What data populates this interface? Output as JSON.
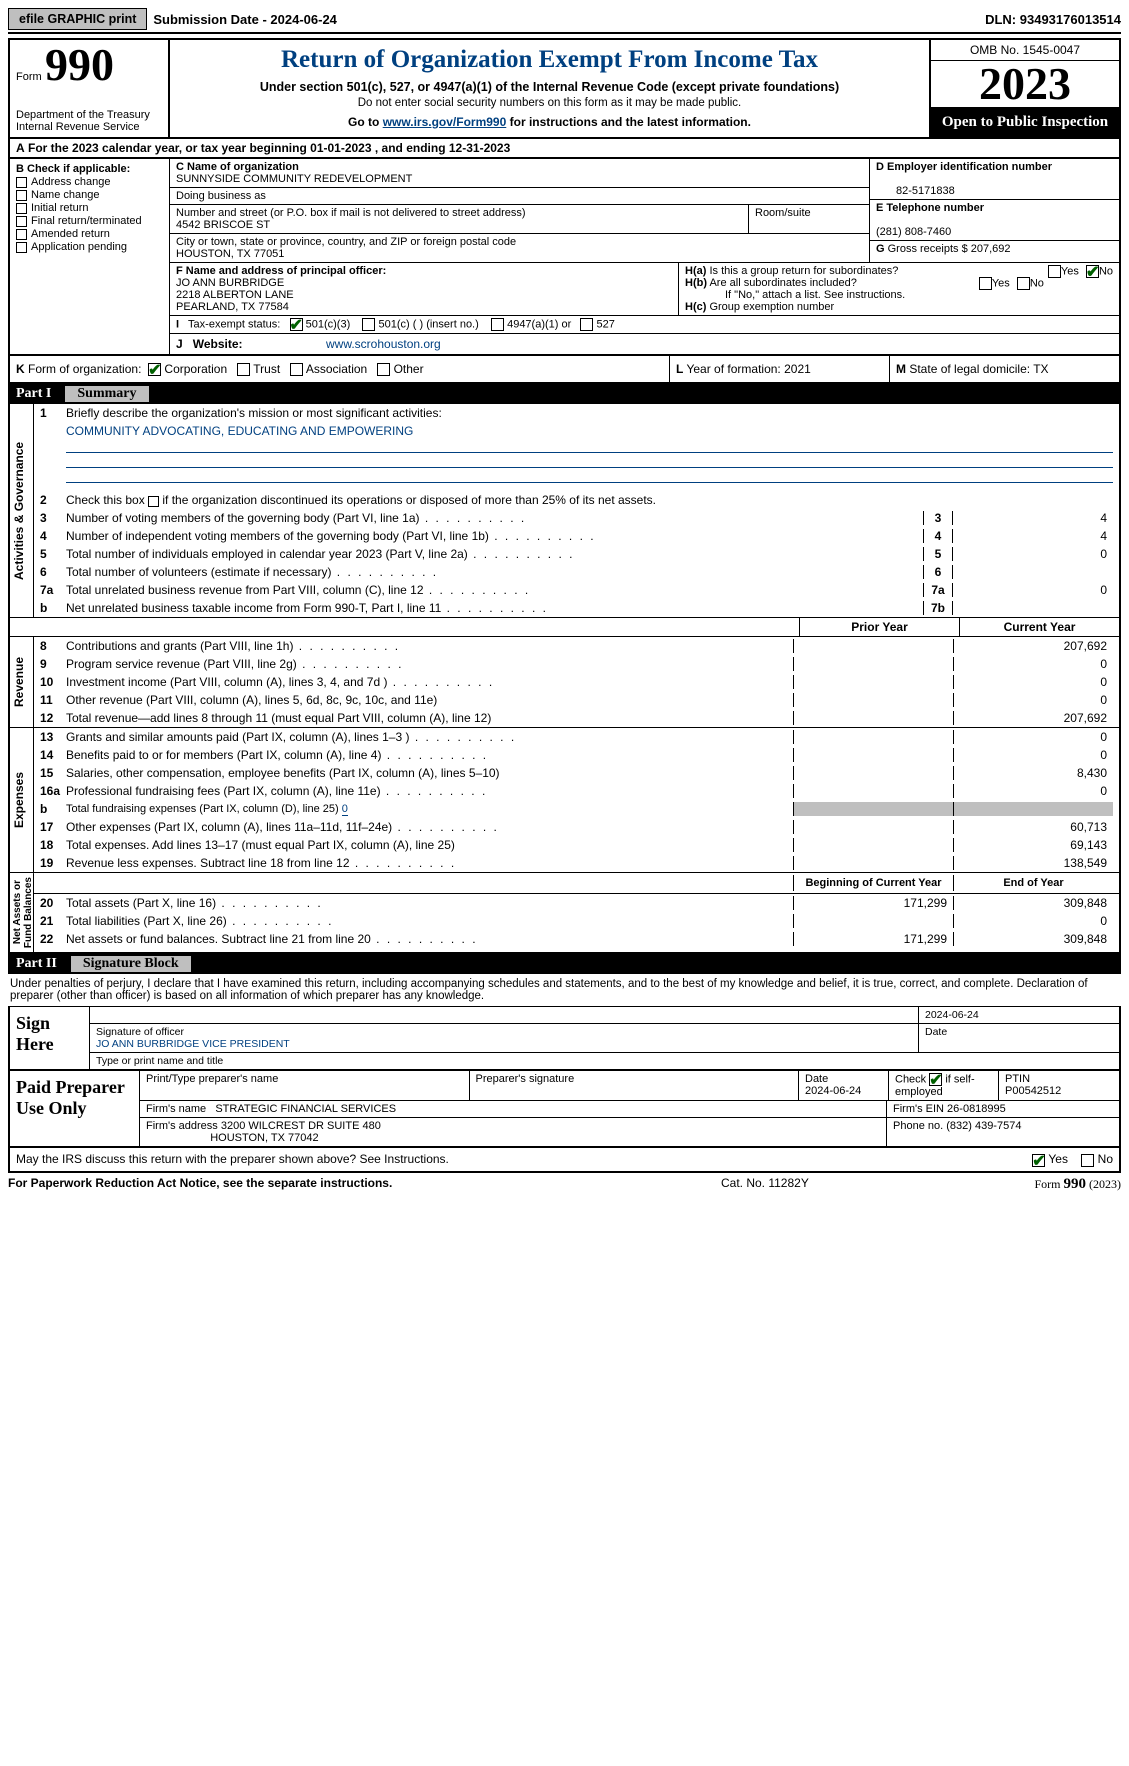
{
  "topbar": {
    "efile_btn": "efile GRAPHIC print",
    "sub_label": "Submission Date - ",
    "sub_date": "2024-06-24",
    "dln_label": "DLN: ",
    "dln": "93493176013514"
  },
  "header": {
    "form_small": "Form",
    "form_num": "990",
    "dept": "Department of the Treasury\nInternal Revenue Service",
    "title": "Return of Organization Exempt From Income Tax",
    "sub1": "Under section 501(c), 527, or 4947(a)(1) of the Internal Revenue Code (except private foundations)",
    "sub2": "Do not enter social security numbers on this form as it may be made public.",
    "sub3a": "Go to ",
    "sub3_link": "www.irs.gov/Form990",
    "sub3b": " for instructions and the latest information.",
    "omb": "OMB No. 1545-0047",
    "year": "2023",
    "open": "Open to Public Inspection"
  },
  "rowA": {
    "a": "A",
    "text1": "For the 2023 calendar year, or tax year beginning ",
    "beg": "01-01-2023",
    "text2": " , and ending ",
    "end": "12-31-2023"
  },
  "B": {
    "hdr": "B Check if applicable:",
    "addr": "Address change",
    "name": "Name change",
    "init": "Initial return",
    "final": "Final return/terminated",
    "amend": "Amended return",
    "app": "Application pending"
  },
  "C": {
    "lab_name": "C Name of organization",
    "name": "SUNNYSIDE COMMUNITY REDEVELOPMENT",
    "lab_dba": "Doing business as",
    "dba": "",
    "lab_addr": "Number and street (or P.O. box if mail is not delivered to street address)",
    "addr": "4542 BRISCOE ST",
    "lab_room": "Room/suite",
    "room": "",
    "lab_city": "City or town, state or province, country, and ZIP or foreign postal code",
    "city": "HOUSTON, TX  77051"
  },
  "D": {
    "lab": "D Employer identification number",
    "val": "82-5171838"
  },
  "E": {
    "lab": "E Telephone number",
    "val": "(281) 808-7460"
  },
  "G": {
    "lab": "G",
    "text": "Gross receipts $ ",
    "val": "207,692"
  },
  "F": {
    "lab": "F  Name and address of principal officer:",
    "l1": "JO ANN BURBRIDGE",
    "l2": "2218 ALBERTON LANE",
    "l3": "PEARLAND, TX  77584"
  },
  "H": {
    "a_lab": "H(a)",
    "a_text": "Is this a group return for subordinates?",
    "b_lab": "H(b)",
    "b_text": "Are all subordinates included?",
    "b_note": "If \"No,\" attach a list. See instructions.",
    "c_lab": "H(c)",
    "c_text": "Group exemption number",
    "yes": "Yes",
    "no": "No"
  },
  "I": {
    "lab": "I",
    "text": "Tax-exempt status:",
    "c3": "501(c)(3)",
    "c": "501(c) (  ) (insert no.)",
    "a1": "4947(a)(1) or",
    "527": "527"
  },
  "J": {
    "lab": "J",
    "text": "Website:",
    "val": "www.scrohouston.org"
  },
  "K": {
    "lab": "K",
    "text": "Form of organization:",
    "corp": "Corporation",
    "trust": "Trust",
    "assoc": "Association",
    "other": "Other"
  },
  "L": {
    "lab": "L",
    "text": "Year of formation: ",
    "val": "2021"
  },
  "M": {
    "lab": "M",
    "text": "State of legal domicile: ",
    "val": "TX"
  },
  "part1": {
    "num": "Part I",
    "title": "Summary"
  },
  "s1": {
    "l1_n": "1",
    "l1_t": "Briefly describe the organization's mission or most significant activities:",
    "mission": "COMMUNITY ADVOCATING, EDUCATING AND EMPOWERING",
    "l2_n": "2",
    "l2_t": "Check this box    if the organization discontinued its operations or disposed of more than 25% of its net assets.",
    "l3_n": "3",
    "l3_t": "Number of voting members of the governing body (Part VI, line 1a)",
    "l3_v": "4",
    "l4_n": "4",
    "l4_t": "Number of independent voting members of the governing body (Part VI, line 1b)",
    "l4_v": "4",
    "l5_n": "5",
    "l5_t": "Total number of individuals employed in calendar year 2023 (Part V, line 2a)",
    "l5_v": "0",
    "l6_n": "6",
    "l6_t": "Total number of volunteers (estimate if necessary)",
    "l6_v": "",
    "l7a_n": "7a",
    "l7a_t": "Total unrelated business revenue from Part VIII, column (C), line 12",
    "l7a_v": "0",
    "l7b_n": "b",
    "l7b_t": "Net unrelated business taxable income from Form 990-T, Part I, line 11",
    "l7b_v": ""
  },
  "colhdr": {
    "prior": "Prior Year",
    "curr": "Current Year"
  },
  "rev": {
    "tab": "Revenue",
    "l8_n": "8",
    "l8_t": "Contributions and grants (Part VIII, line 1h)",
    "l8_p": "",
    "l8_c": "207,692",
    "l9_n": "9",
    "l9_t": "Program service revenue (Part VIII, line 2g)",
    "l9_p": "",
    "l9_c": "0",
    "l10_n": "10",
    "l10_t": "Investment income (Part VIII, column (A), lines 3, 4, and 7d )",
    "l10_p": "",
    "l10_c": "0",
    "l11_n": "11",
    "l11_t": "Other revenue (Part VIII, column (A), lines 5, 6d, 8c, 9c, 10c, and 11e)",
    "l11_p": "",
    "l11_c": "0",
    "l12_n": "12",
    "l12_t": "Total revenue—add lines 8 through 11 (must equal Part VIII, column (A), line 12)",
    "l12_p": "",
    "l12_c": "207,692"
  },
  "exp": {
    "tab": "Expenses",
    "l13_n": "13",
    "l13_t": "Grants and similar amounts paid (Part IX, column (A), lines 1–3 )",
    "l13_c": "0",
    "l14_n": "14",
    "l14_t": "Benefits paid to or for members (Part IX, column (A), line 4)",
    "l14_c": "0",
    "l15_n": "15",
    "l15_t": "Salaries, other compensation, employee benefits (Part IX, column (A), lines 5–10)",
    "l15_c": "8,430",
    "l16a_n": "16a",
    "l16a_t": "Professional fundraising fees (Part IX, column (A), line 11e)",
    "l16a_c": "0",
    "l16b_n": "b",
    "l16b_t": "Total fundraising expenses (Part IX, column (D), line 25) ",
    "l16b_v": "0",
    "l17_n": "17",
    "l17_t": "Other expenses (Part IX, column (A), lines 11a–11d, 11f–24e)",
    "l17_c": "60,713",
    "l18_n": "18",
    "l18_t": "Total expenses. Add lines 13–17 (must equal Part IX, column (A), line 25)",
    "l18_c": "69,143",
    "l19_n": "19",
    "l19_t": "Revenue less expenses. Subtract line 18 from line 12",
    "l19_c": "138,549"
  },
  "na": {
    "tab": "Net Assets or\nFund Balances",
    "hdr_beg": "Beginning of Current Year",
    "hdr_end": "End of Year",
    "l20_n": "20",
    "l20_t": "Total assets (Part X, line 16)",
    "l20_b": "171,299",
    "l20_e": "309,848",
    "l21_n": "21",
    "l21_t": "Total liabilities (Part X, line 26)",
    "l21_b": "",
    "l21_e": "0",
    "l22_n": "22",
    "l22_t": "Net assets or fund balances. Subtract line 21 from line 20",
    "l22_b": "171,299",
    "l22_e": "309,848"
  },
  "part2": {
    "num": "Part II",
    "title": "Signature Block"
  },
  "sig": {
    "intro": "Under penalties of perjury, I declare that I have examined this return, including accompanying schedules and statements, and to the best of my knowledge and belief, it is true, correct, and complete. Declaration of preparer (other than officer) is based on all information of which preparer has any knowledge.",
    "here": "Sign Here",
    "date_top": "2024-06-24",
    "sig_lab": "Signature of officer",
    "date_lab": "Date",
    "name": "JO ANN BURBRIDGE  VICE PRESIDENT",
    "name_lab": "Type or print name and title"
  },
  "prep": {
    "here": "Paid Preparer Use Only",
    "h1": "Print/Type preparer's name",
    "h2": "Preparer's signature",
    "h3": "Date",
    "h3v": "2024-06-24",
    "h4a": "Check",
    "h4b": "if self-employed",
    "h5": "PTIN",
    "h5v": "P00542512",
    "fn_lab": "Firm's name  ",
    "fn": "STRATEGIC FINANCIAL SERVICES",
    "fein_lab": "Firm's EIN  ",
    "fein": "26-0818995",
    "fa_lab": "Firm's address ",
    "fa1": "3200 WILCREST DR SUITE 480",
    "fa2": "HOUSTON, TX  77042",
    "ph_lab": "Phone no. ",
    "ph": "(832) 439-7574"
  },
  "may": {
    "text": "May the IRS discuss this return with the preparer shown above? See Instructions.",
    "yes": "Yes",
    "no": "No"
  },
  "footer": {
    "l": "For Paperwork Reduction Act Notice, see the separate instructions.",
    "c": "Cat. No. 11282Y",
    "r1": "Form ",
    "r2": "990",
    "r3": " (2023)"
  },
  "gov_tab": "Activities & Governance"
}
